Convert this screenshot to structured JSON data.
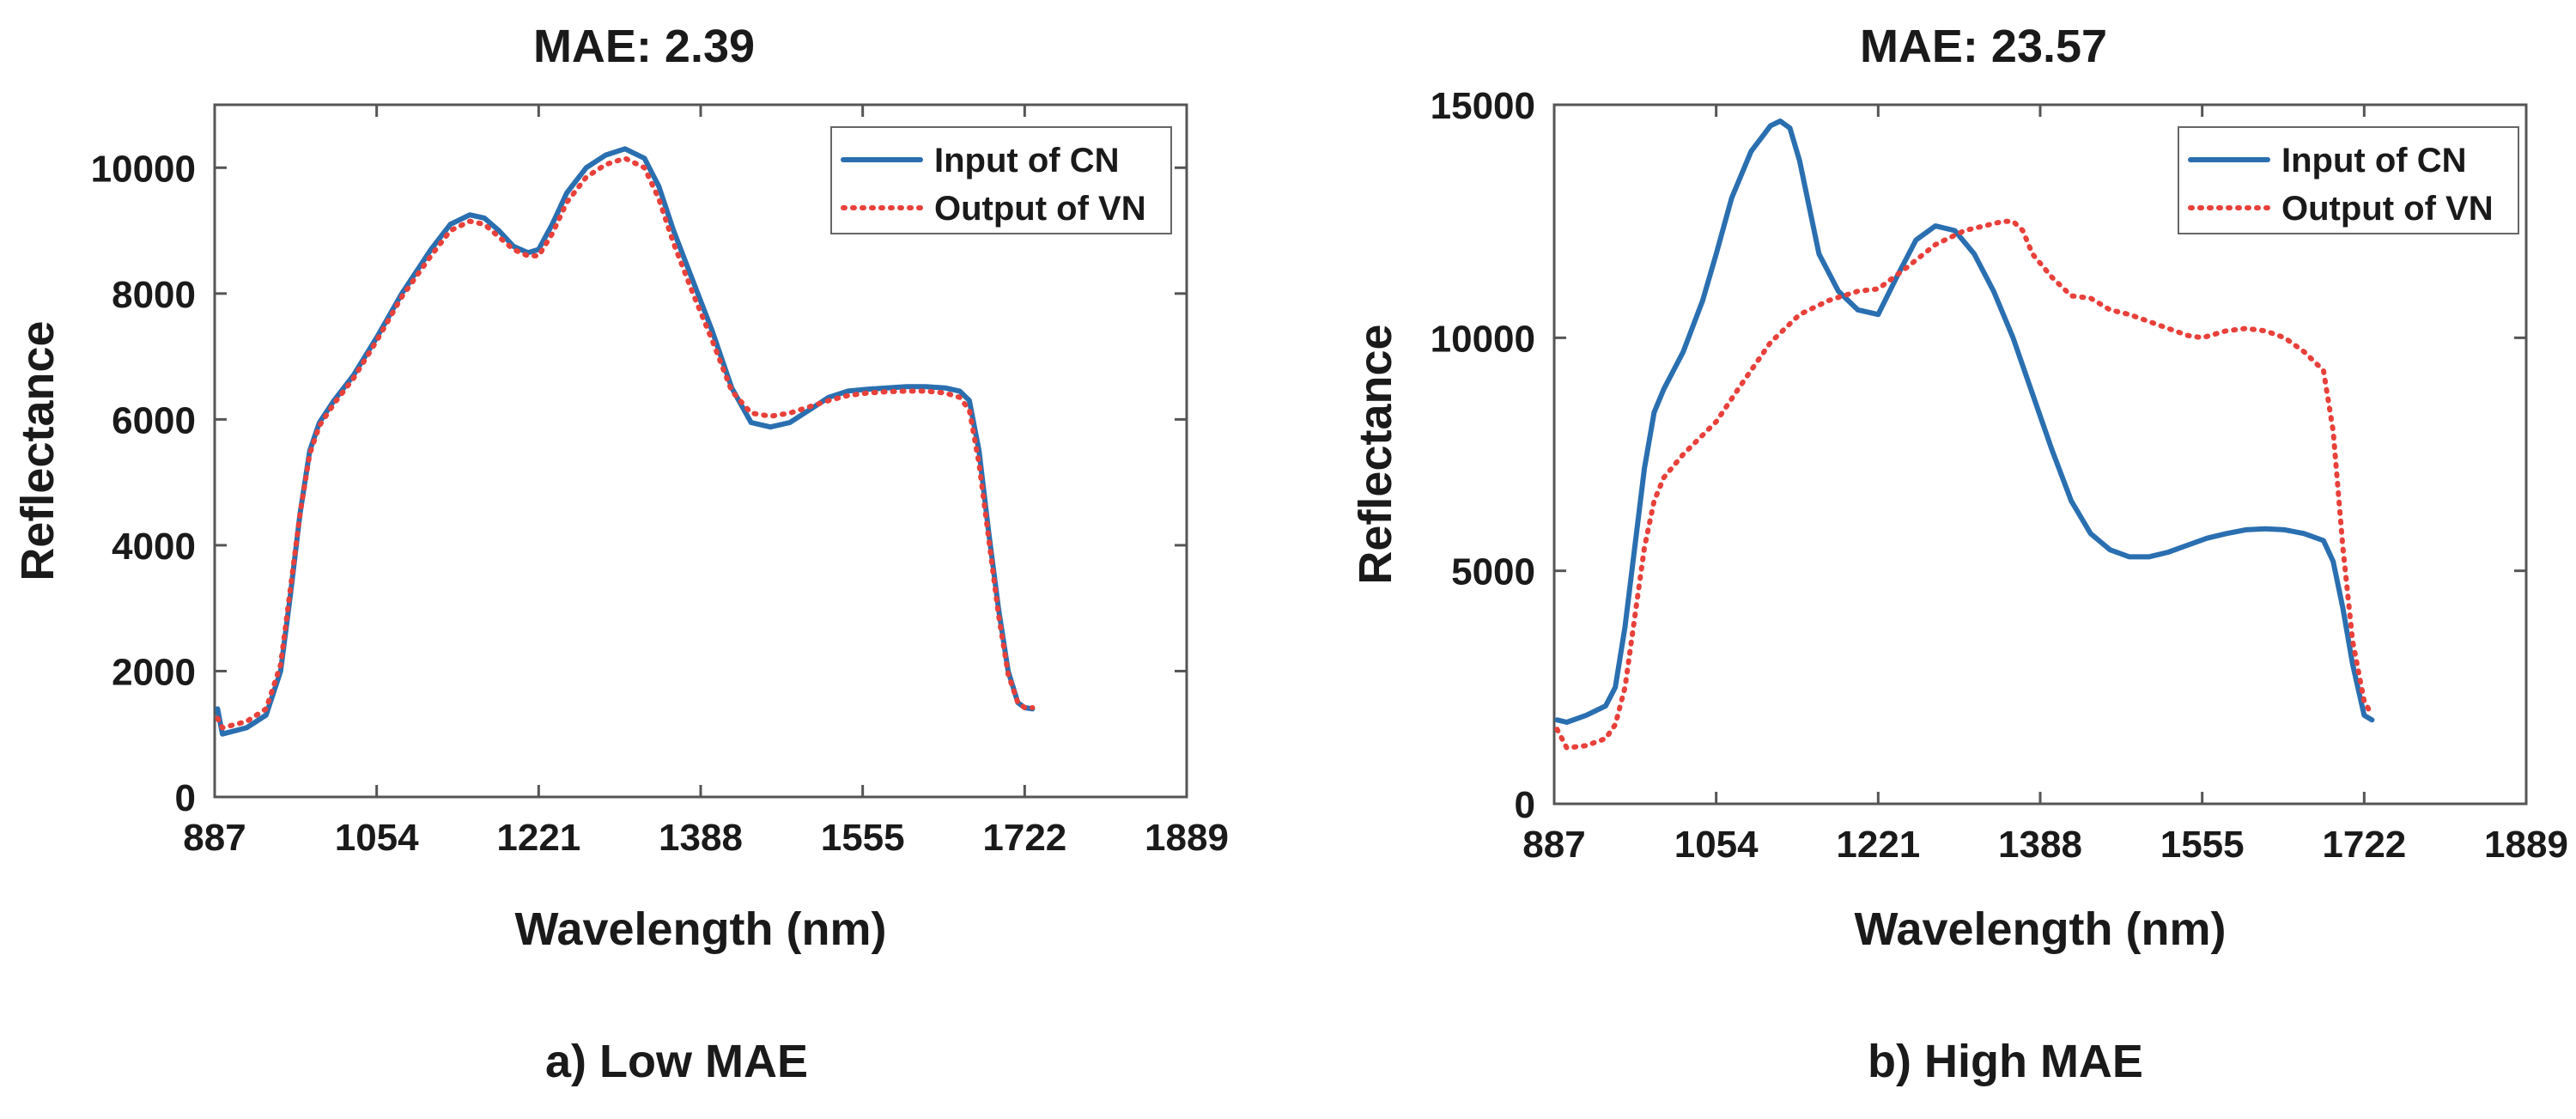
{
  "chart_data": [
    {
      "type": "line",
      "title": "MAE: 2.39",
      "caption": "a) Low MAE",
      "xlabel": "Wavelength (nm)",
      "ylabel": "Reflectance",
      "xlim": [
        887,
        1889
      ],
      "ylim": [
        0,
        11000
      ],
      "xticks": [
        887,
        1054,
        1221,
        1388,
        1555,
        1722,
        1889
      ],
      "yticks": [
        0,
        2000,
        4000,
        6000,
        8000,
        10000
      ],
      "legend_position": "top-right",
      "series": [
        {
          "name": "Input of CN",
          "color": "#2a6fb0",
          "style": "solid",
          "x": [
            890,
            895,
            920,
            940,
            955,
            965,
            975,
            985,
            995,
            1010,
            1030,
            1054,
            1080,
            1110,
            1130,
            1150,
            1165,
            1180,
            1195,
            1210,
            1221,
            1235,
            1250,
            1270,
            1290,
            1310,
            1330,
            1345,
            1360,
            1380,
            1400,
            1420,
            1440,
            1460,
            1480,
            1500,
            1520,
            1540,
            1560,
            1580,
            1600,
            1620,
            1640,
            1655,
            1665,
            1675,
            1685,
            1695,
            1705,
            1715,
            1722,
            1730
          ],
          "y": [
            1400,
            1000,
            1100,
            1300,
            2000,
            3200,
            4500,
            5500,
            5950,
            6300,
            6700,
            7300,
            8000,
            8700,
            9100,
            9250,
            9200,
            9000,
            8750,
            8650,
            8700,
            9100,
            9600,
            10000,
            10200,
            10300,
            10150,
            9700,
            9000,
            8200,
            7400,
            6500,
            5950,
            5880,
            5950,
            6150,
            6350,
            6450,
            6480,
            6500,
            6520,
            6520,
            6500,
            6450,
            6300,
            5500,
            4200,
            3000,
            2000,
            1500,
            1420,
            1400
          ]
        },
        {
          "name": "Output of VN",
          "color": "#e8403a",
          "style": "dotted",
          "x": [
            890,
            895,
            920,
            940,
            955,
            965,
            975,
            985,
            995,
            1010,
            1030,
            1054,
            1080,
            1110,
            1130,
            1150,
            1165,
            1180,
            1195,
            1210,
            1221,
            1235,
            1250,
            1270,
            1290,
            1310,
            1330,
            1345,
            1360,
            1380,
            1400,
            1420,
            1440,
            1460,
            1480,
            1500,
            1520,
            1540,
            1560,
            1580,
            1600,
            1620,
            1640,
            1655,
            1665,
            1675,
            1685,
            1695,
            1705,
            1715,
            1722,
            1730
          ],
          "y": [
            1250,
            1100,
            1200,
            1400,
            2100,
            3300,
            4500,
            5450,
            5900,
            6250,
            6650,
            7250,
            7950,
            8600,
            9000,
            9150,
            9100,
            8900,
            8700,
            8600,
            8600,
            8950,
            9450,
            9850,
            10050,
            10150,
            10000,
            9500,
            8800,
            8000,
            7250,
            6450,
            6100,
            6050,
            6100,
            6200,
            6300,
            6380,
            6420,
            6440,
            6450,
            6450,
            6420,
            6350,
            6150,
            5300,
            4100,
            2900,
            1950,
            1500,
            1420,
            1420
          ]
        }
      ]
    },
    {
      "type": "line",
      "title": "MAE: 23.57",
      "caption": "b) High MAE",
      "xlabel": "Wavelength (nm)",
      "ylabel": "Reflectance",
      "xlim": [
        887,
        1889
      ],
      "ylim": [
        0,
        15000
      ],
      "xticks": [
        887,
        1054,
        1221,
        1388,
        1555,
        1722,
        1889
      ],
      "yticks": [
        0,
        5000,
        10000,
        15000
      ],
      "legend_position": "top-right",
      "series": [
        {
          "name": "Input of CN",
          "color": "#2a6fb0",
          "style": "solid",
          "x": [
            890,
            900,
            920,
            940,
            950,
            960,
            970,
            980,
            990,
            1000,
            1020,
            1040,
            1054,
            1070,
            1090,
            1110,
            1120,
            1130,
            1140,
            1150,
            1160,
            1170,
            1180,
            1200,
            1221,
            1240,
            1260,
            1280,
            1300,
            1320,
            1340,
            1360,
            1380,
            1400,
            1420,
            1440,
            1460,
            1480,
            1500,
            1520,
            1540,
            1560,
            1580,
            1600,
            1620,
            1640,
            1660,
            1680,
            1690,
            1700,
            1710,
            1722,
            1730
          ],
          "y": [
            1800,
            1750,
            1900,
            2100,
            2500,
            3800,
            5500,
            7200,
            8400,
            8900,
            9700,
            10800,
            11800,
            13000,
            14000,
            14550,
            14650,
            14500,
            13800,
            12800,
            11800,
            11400,
            11000,
            10600,
            10500,
            11300,
            12100,
            12400,
            12300,
            11800,
            11000,
            10000,
            8800,
            7600,
            6500,
            5800,
            5450,
            5300,
            5300,
            5400,
            5550,
            5700,
            5800,
            5880,
            5900,
            5880,
            5800,
            5650,
            5200,
            4200,
            3000,
            1900,
            1800
          ]
        },
        {
          "name": "Output of VN",
          "color": "#e8403a",
          "style": "dotted",
          "x": [
            890,
            900,
            920,
            940,
            950,
            960,
            970,
            980,
            990,
            1000,
            1020,
            1054,
            1080,
            1110,
            1140,
            1170,
            1200,
            1221,
            1250,
            1280,
            1310,
            1330,
            1350,
            1360,
            1370,
            1380,
            1400,
            1420,
            1440,
            1460,
            1480,
            1500,
            1520,
            1540,
            1555,
            1580,
            1600,
            1620,
            1640,
            1660,
            1670,
            1680,
            1690,
            1700,
            1710,
            1722,
            1730
          ],
          "y": [
            1600,
            1200,
            1250,
            1400,
            1700,
            2500,
            4000,
            5500,
            6500,
            7000,
            7500,
            8200,
            9000,
            9900,
            10500,
            10800,
            11000,
            11050,
            11500,
            12000,
            12300,
            12400,
            12500,
            12500,
            12300,
            11800,
            11300,
            10900,
            10850,
            10600,
            10500,
            10350,
            10200,
            10050,
            10000,
            10150,
            10200,
            10150,
            10000,
            9700,
            9500,
            9300,
            8000,
            5500,
            3500,
            2200,
            1900
          ]
        }
      ]
    }
  ]
}
